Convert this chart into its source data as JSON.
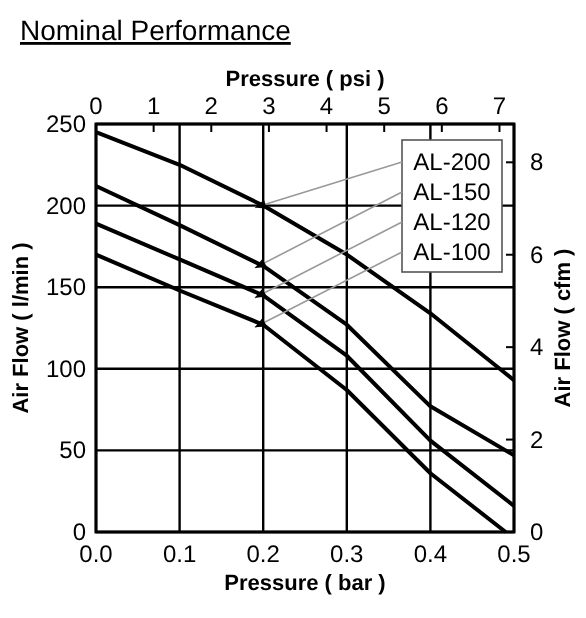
{
  "chart_data": {
    "type": "line",
    "title": "Nominal Performance",
    "xlabel": "Pressure ( bar )",
    "x2label": "Pressure ( psi )",
    "ylabel": "Air Flow ( l/min )",
    "y2label": "Air Flow ( cfm )",
    "xlim": [
      0,
      0.5
    ],
    "xticks": [
      {
        "value": 0,
        "label": "0.0"
      },
      0.1,
      0.2,
      0.3,
      0.4,
      0.5
    ],
    "x2lim": [
      0,
      7.252
    ],
    "x2ticks": [
      0,
      1,
      2,
      3,
      4,
      5,
      6,
      7
    ],
    "ylim": [
      0,
      250
    ],
    "yticks": [
      0,
      50,
      100,
      150,
      200,
      250
    ],
    "y2lim": [
      0,
      8.829
    ],
    "y2ticks": [
      0,
      2,
      4,
      6,
      8
    ],
    "grid": true,
    "legend": "top right",
    "line_style": "solid",
    "marker": "none",
    "series": [
      {
        "name": "AL-200",
        "color": "#000000",
        "x": [
          0,
          0.1,
          0.2,
          0.3,
          0.4,
          0.5
        ],
        "values": [
          245,
          225,
          200,
          170,
          134,
          93
        ]
      },
      {
        "name": "AL-150",
        "color": "#000000",
        "x": [
          0,
          0.1,
          0.2,
          0.3,
          0.4,
          0.5
        ],
        "values": [
          212,
          188,
          163,
          127,
          77,
          47
        ]
      },
      {
        "name": "AL-120",
        "color": "#000000",
        "x": [
          0,
          0.1,
          0.2,
          0.3,
          0.4,
          0.5
        ],
        "values": [
          189,
          167,
          145,
          108,
          56,
          16
        ]
      },
      {
        "name": "AL-100",
        "color": "#000000",
        "x": [
          0,
          0.1,
          0.2,
          0.3,
          0.4,
          0.49
        ],
        "values": [
          170,
          148,
          127,
          87,
          36,
          0
        ]
      }
    ]
  }
}
